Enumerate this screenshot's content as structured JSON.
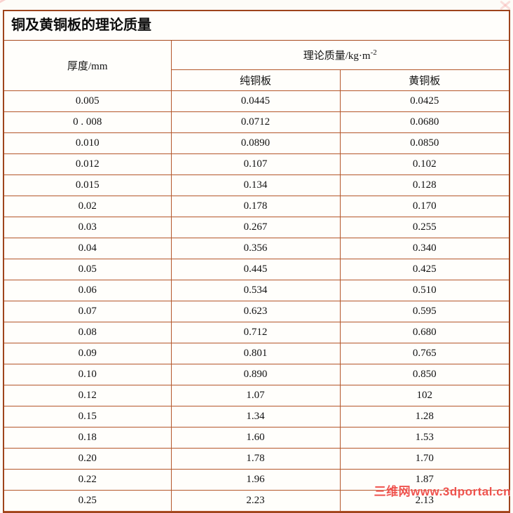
{
  "page": {
    "background": "#fdfcf8",
    "table_border_color": "#9e441c",
    "grid_line_color": "#b4562a"
  },
  "table": {
    "title": "铜及黄铜板的理论质量",
    "header": {
      "thickness": "厚度/mm",
      "mass_group_base": "理论质量/kg·m",
      "mass_group_sup": "-2",
      "pure_copper": "纯铜板",
      "brass": "黄铜板"
    },
    "rows": [
      [
        "0.005",
        "0.0445",
        "0.0425"
      ],
      [
        "0 . 008",
        "0.0712",
        "0.0680"
      ],
      [
        "0.010",
        "0.0890",
        "0.0850"
      ],
      [
        "0.012",
        "0.107",
        "0.102"
      ],
      [
        "0.015",
        "0.134",
        "0.128"
      ],
      [
        "0.02",
        "0.178",
        "0.170"
      ],
      [
        "0.03",
        "0.267",
        "0.255"
      ],
      [
        "0.04",
        "0.356",
        "0.340"
      ],
      [
        "0.05",
        "0.445",
        "0.425"
      ],
      [
        "0.06",
        "0.534",
        "0.510"
      ],
      [
        "0.07",
        "0.623",
        "0.595"
      ],
      [
        "0.08",
        "0.712",
        "0.680"
      ],
      [
        "0.09",
        "0.801",
        "0.765"
      ],
      [
        "0.10",
        "0.890",
        "0.850"
      ],
      [
        "0.12",
        "1.07",
        "102"
      ],
      [
        "0.15",
        "1.34",
        "1.28"
      ],
      [
        "0.18",
        "1.60",
        "1.53"
      ],
      [
        "0.20",
        "1.78",
        "1.70"
      ],
      [
        "0.22",
        "1.96",
        "1.87"
      ],
      [
        "0.25",
        "2.23",
        "2.13"
      ]
    ]
  },
  "watermark": {
    "text": "三维网www.3dportal.cn",
    "color": "#ee4540"
  }
}
